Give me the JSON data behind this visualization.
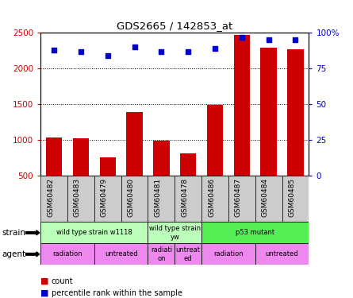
{
  "title": "GDS2665 / 142853_at",
  "samples": [
    "GSM60482",
    "GSM60483",
    "GSM60479",
    "GSM60480",
    "GSM60481",
    "GSM60478",
    "GSM60486",
    "GSM60487",
    "GSM60484",
    "GSM60485"
  ],
  "counts": [
    1040,
    1020,
    760,
    1390,
    990,
    810,
    1490,
    2470,
    2290,
    2270
  ],
  "percentile": [
    88,
    87,
    84,
    90,
    87,
    87,
    89,
    97,
    95,
    95
  ],
  "bar_color": "#cc0000",
  "dot_color": "#0000cc",
  "ylim_left": [
    500,
    2500
  ],
  "ylim_right": [
    0,
    100
  ],
  "yticks_left": [
    500,
    1000,
    1500,
    2000,
    2500
  ],
  "yticks_right": [
    0,
    25,
    50,
    75,
    100
  ],
  "strain_groups": [
    {
      "label": "wild type strain w1118",
      "start": 0,
      "end": 4,
      "color": "#bbffbb"
    },
    {
      "label": "wild type strain\nyw",
      "start": 4,
      "end": 6,
      "color": "#bbffbb"
    },
    {
      "label": "p53 mutant",
      "start": 6,
      "end": 10,
      "color": "#55ee55"
    }
  ],
  "agent_groups": [
    {
      "label": "radiation",
      "start": 0,
      "end": 2,
      "color": "#ee88ee"
    },
    {
      "label": "untreated",
      "start": 2,
      "end": 4,
      "color": "#ee88ee"
    },
    {
      "label": "radiati-\non",
      "start": 4,
      "end": 5,
      "color": "#ee88ee"
    },
    {
      "label": "untreat-\ned",
      "start": 5,
      "end": 6,
      "color": "#ee88ee"
    },
    {
      "label": "radiation",
      "start": 6,
      "end": 8,
      "color": "#ee88ee"
    },
    {
      "label": "untreated",
      "start": 8,
      "end": 10,
      "color": "#ee88ee"
    }
  ],
  "legend_count_color": "#cc0000",
  "legend_pct_color": "#0000cc",
  "axis_color_left": "#cc0000",
  "axis_color_right": "#0000cc",
  "tick_label_bg": "#cccccc",
  "chart_bg": "#ffffff",
  "agent_labels_display": [
    "radiation",
    "untreated",
    "radiati\non",
    "untreat\ned",
    "radiation",
    "untreated"
  ]
}
